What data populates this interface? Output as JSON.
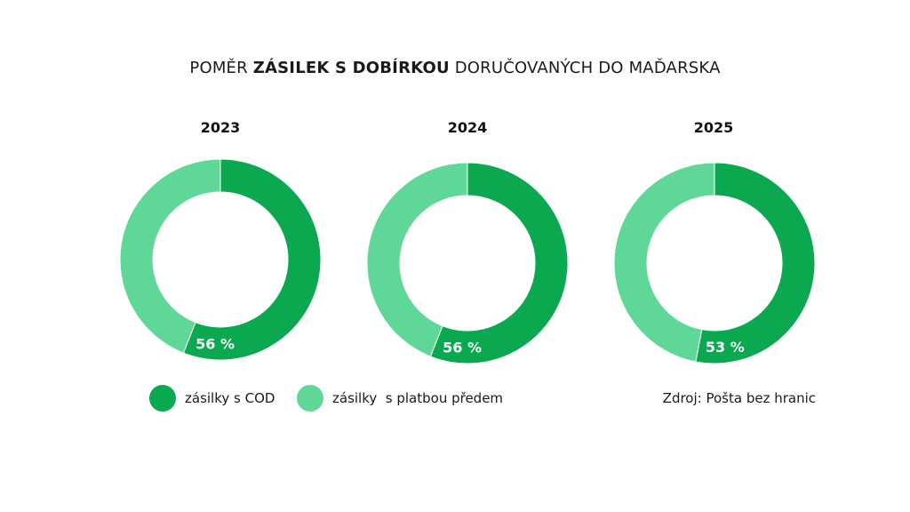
{
  "title": {
    "prefix": "POMĚR ",
    "bold": "ZÁSILEK S DOBÍRKOU",
    "suffix": " DORUČOVANÝCH DO MAĎARSKA"
  },
  "colors": {
    "cod": "#0aa84f",
    "prepaid": "#5fd897",
    "label_text": "#ffffff"
  },
  "chart_data": {
    "type": "donut",
    "title": "POMĚR ZÁSILEK S DOBÍRKOU DORUČOVANÝCH DO MAĎARSKA",
    "series_names": [
      "zásilky s COD",
      "zásilky  s platbou předem"
    ],
    "charts": [
      {
        "year": "2023",
        "cod_percent": 56,
        "prepaid_percent": 44,
        "label": "56 %"
      },
      {
        "year": "2024",
        "cod_percent": 56,
        "prepaid_percent": 44,
        "label": "56 %"
      },
      {
        "year": "2025",
        "cod_percent": 53,
        "prepaid_percent": 47,
        "label": "53 %"
      }
    ]
  },
  "legend": [
    {
      "label": "zásilky s COD",
      "color_key": "cod"
    },
    {
      "label": "zásilky  s platbou předem",
      "color_key": "prepaid"
    }
  ],
  "source": "Zdroj: Pošta bez hranic"
}
